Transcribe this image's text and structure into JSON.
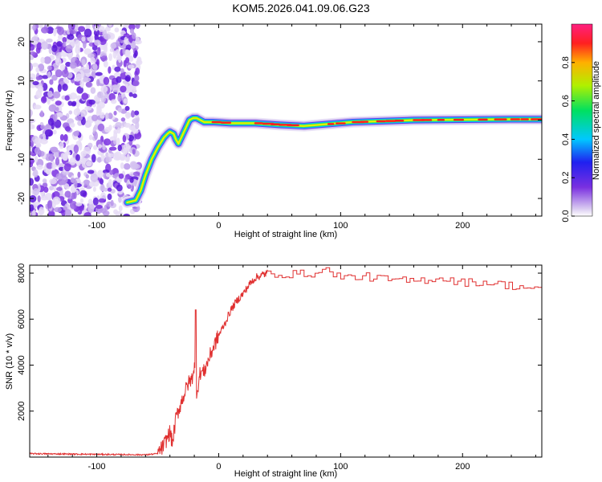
{
  "title": "KOM5.2026.041.09.06.G23",
  "chart_data": [
    {
      "type": "heatmap",
      "xlabel": "Height of straight line (km)",
      "ylabel": "Frequency (Hz)",
      "xlim": [
        -155,
        265
      ],
      "ylim": [
        -24.5,
        24.5
      ],
      "xticks": [
        -100,
        0,
        100,
        200
      ],
      "yticks": [
        -20,
        -10,
        0,
        10,
        20
      ],
      "colorbar": {
        "label": "Normalized spectral amplitude",
        "range": [
          0.0,
          1.0
        ],
        "ticks": [
          0.0,
          0.2,
          0.4,
          0.6,
          0.8
        ]
      },
      "signal_track": {
        "x": [
          -75,
          -68,
          -64,
          -60,
          -55,
          -50,
          -47,
          -45,
          -42,
          -40,
          -37,
          -35,
          -33,
          -30,
          -27,
          -24,
          -21,
          -18,
          -15,
          -12,
          -5,
          10,
          30,
          50,
          70,
          90,
          110,
          130,
          160,
          200,
          240,
          265
        ],
        "y": [
          -21,
          -20.5,
          -18,
          -14,
          -10,
          -7,
          -5.5,
          -4.5,
          -3.5,
          -3,
          -3.5,
          -5,
          -6,
          -4,
          -2,
          0,
          0.5,
          0.5,
          0,
          -0.5,
          -0.5,
          -0.8,
          -0.8,
          -1.2,
          -1.5,
          -1,
          -0.5,
          -0.3,
          0,
          0.1,
          0.2,
          0.2
        ]
      },
      "noise_region_x": [
        -155,
        -65
      ]
    },
    {
      "type": "line",
      "xlabel": "Height of straight line (km)",
      "ylabel": "SNR (10 * v/v)",
      "xlim": [
        -155,
        265
      ],
      "ylim": [
        0,
        8350
      ],
      "xticks": [
        -100,
        0,
        100,
        200
      ],
      "yticks": [
        2000,
        4000,
        6000,
        8000
      ],
      "color": "#e03030",
      "series": [
        {
          "x": [
            -155,
            -100,
            -60,
            -50,
            -45,
            -40,
            -38,
            -35,
            -30,
            -25,
            -22,
            -20,
            -18,
            -15,
            -12,
            -10,
            -5,
            0,
            5,
            10,
            15,
            20,
            25,
            30,
            35,
            40,
            60,
            80,
            90,
            100,
            120,
            140,
            160,
            180,
            200,
            220,
            240,
            265
          ],
          "y": [
            150,
            120,
            100,
            150,
            500,
            1100,
            600,
            1700,
            2500,
            3200,
            3400,
            4000,
            2800,
            3700,
            3700,
            4000,
            4700,
            5300,
            5800,
            6400,
            6800,
            7100,
            7500,
            7800,
            7900,
            8000,
            7950,
            8000,
            8150,
            7800,
            7850,
            7700,
            7650,
            7800,
            7600,
            7600,
            7450,
            7300
          ]
        }
      ],
      "spike": {
        "x": -19,
        "y": 6400
      }
    }
  ]
}
